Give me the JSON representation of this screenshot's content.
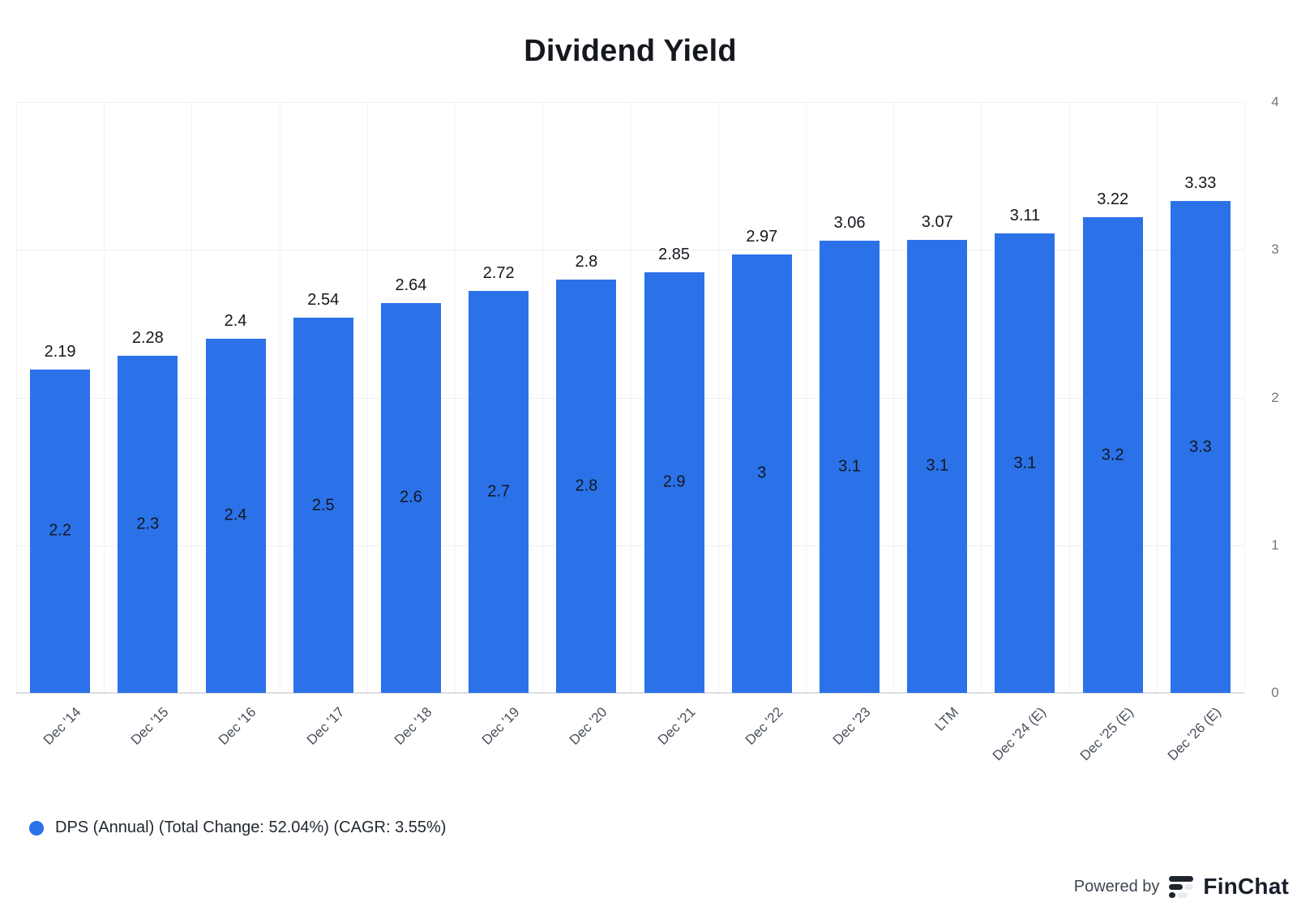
{
  "header": {
    "title": "Dividend Yield"
  },
  "chart_data": {
    "type": "bar",
    "title": "Dividend Yield",
    "categories": [
      "Dec '14",
      "Dec '15",
      "Dec '16",
      "Dec '17",
      "Dec '18",
      "Dec '19",
      "Dec '20",
      "Dec '21",
      "Dec '22",
      "Dec '23",
      "LTM",
      "Dec '24 (E)",
      "Dec '25 (E)",
      "Dec '26 (E)"
    ],
    "series": [
      {
        "name": "DPS (Annual)",
        "values": [
          2.19,
          2.28,
          2.4,
          2.54,
          2.64,
          2.72,
          2.8,
          2.85,
          2.97,
          3.06,
          3.07,
          3.11,
          3.22,
          3.33
        ],
        "bar_labels_top": [
          "2.19",
          "2.28",
          "2.4",
          "2.54",
          "2.64",
          "2.72",
          "2.8",
          "2.85",
          "2.97",
          "3.06",
          "3.07",
          "3.11",
          "3.22",
          "3.33"
        ],
        "bar_labels_inside": [
          "2.2",
          "2.3",
          "2.4",
          "2.5",
          "2.6",
          "2.7",
          "2.8",
          "2.9",
          "3",
          "3.1",
          "3.1",
          "3.1",
          "3.2",
          "3.3"
        ]
      }
    ],
    "xlabel": "",
    "ylabel": "",
    "ylim": [
      0,
      4
    ],
    "y_ticks": [
      0,
      1,
      2,
      3,
      4
    ],
    "y_axis_position": "right",
    "grid": true,
    "bar_color": "#2b72e9",
    "legend_position": "bottom-left",
    "legend_label": "DPS (Annual) (Total Change: 52.04%) (CAGR: 3.55%)"
  },
  "footer": {
    "powered_by": "Powered by",
    "brand": "FinChat",
    "brand_dark": "#20242d",
    "brand_light": "#e9ebf0"
  }
}
